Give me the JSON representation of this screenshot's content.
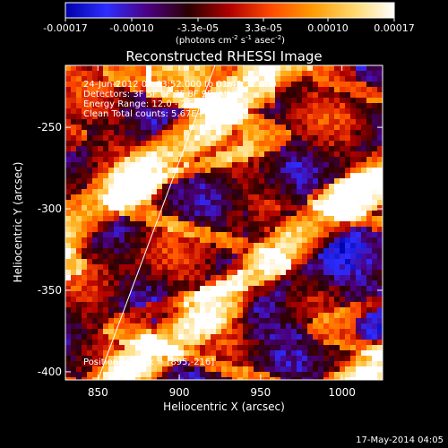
{
  "colorbar": {
    "tick_labels": [
      "-0.00017",
      "-0.00010",
      "-3.3e-05",
      "3.3e-05",
      "0.00010",
      "0.00017"
    ],
    "units_main": "(photons cm",
    "units_sup1": "-2",
    "units_mid": " s",
    "units_sup2": "-1",
    "units_tail": " asec",
    "units_sup3": "-2",
    "units_close": ")",
    "colormap": [
      "#0000a8",
      "#2d2dff",
      "#4b0082",
      "#2b0000",
      "#b00000",
      "#ff4a00",
      "#ff9a00",
      "#ffd76a",
      "#ffffff"
    ]
  },
  "chart_data": {
    "type": "heatmap",
    "title": "Reconstructed RHESSI Image",
    "xlabel": "Heliocentric X (arcsec)",
    "ylabel": "Heliocentric Y (arcsec)",
    "xlim": [
      830,
      1025
    ],
    "ylim": [
      -405,
      -212
    ],
    "xticks": [
      850,
      900,
      950,
      1000
    ],
    "yticks": [
      -250,
      -300,
      -350,
      -400
    ],
    "colorbar_range": [
      -0.00017,
      0.00017
    ],
    "limb_line": {
      "x": [
        850,
        922
      ],
      "y": [
        -405,
        -212
      ]
    },
    "peak_position": [
      895,
      -216
    ],
    "info": [
      "24-Jun-2012 01:43:52.000 to 01:49:32.000",
      "Detectors: 3F 5F 6F 7F 8F 9F, Att 0",
      "Energy Range: 12.0 - 25.0 keV",
      "Clean      Total counts: 5.67E+03"
    ],
    "peak_label": "Position of Peak = [895,-216]"
  },
  "footer": {
    "timestamp": "17-May-2014 04:05"
  }
}
